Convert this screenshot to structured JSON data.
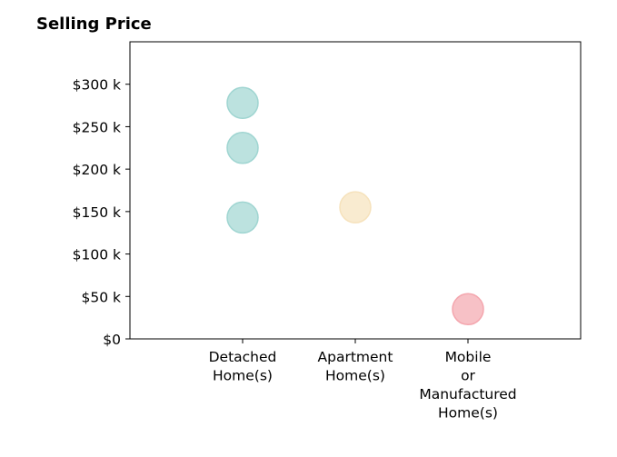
{
  "chart_data": {
    "type": "scatter",
    "title": "Selling Price",
    "xlabel": "",
    "ylabel": "",
    "categories": [
      [
        "Detached",
        "Home(s)"
      ],
      [
        "Apartment",
        "Home(s)"
      ],
      [
        "Mobile",
        "or",
        "Manufactured",
        "Home(s)"
      ]
    ],
    "x_range": [
      -1,
      3
    ],
    "ylim": [
      0,
      350000
    ],
    "y_ticks": [
      0,
      50000,
      100000,
      150000,
      200000,
      250000,
      300000
    ],
    "y_tick_labels": [
      "$0",
      "$50 k",
      "$100 k",
      "$150 k",
      "$200 k",
      "$250 k",
      "$300 k"
    ],
    "points": [
      {
        "category": 0,
        "value": 278000,
        "color": "#9fd5d1"
      },
      {
        "category": 0,
        "value": 225000,
        "color": "#9fd5d1"
      },
      {
        "category": 0,
        "value": 143000,
        "color": "#9fd5d1"
      },
      {
        "category": 1,
        "value": 155000,
        "color": "#f6e2bc"
      },
      {
        "category": 2,
        "value": 35000,
        "color": "#f4a6ae"
      }
    ],
    "grid": false,
    "legend": "none"
  }
}
